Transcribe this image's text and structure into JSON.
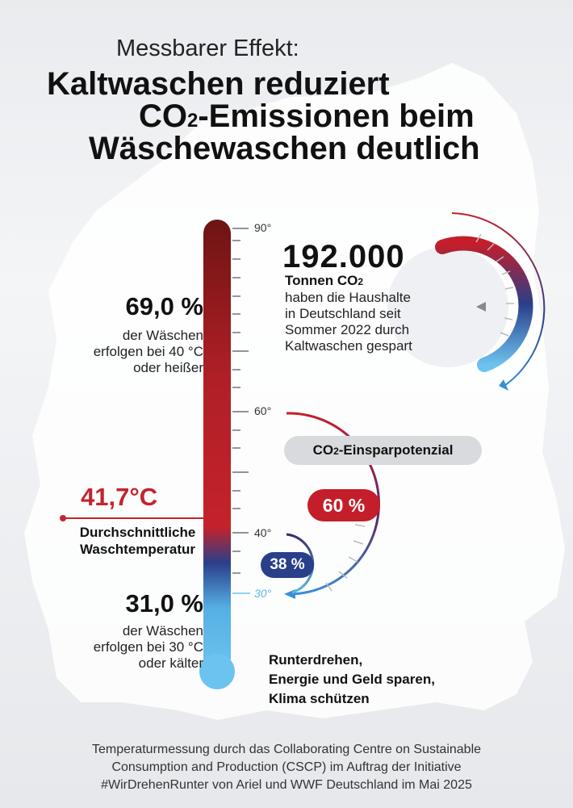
{
  "header": {
    "subtitle": "Messbarer Effekt:",
    "title_line1": "Kaltwaschen reduziert",
    "title_line2_pre": "CO",
    "title_line2_sub": "2",
    "title_line2_post": "-Emissionen beim",
    "title_line3": "Wäschewaschen deutlich"
  },
  "thermometer": {
    "ticks": [
      "90°",
      "60°",
      "40°",
      "30°"
    ],
    "average_temp": "41,7°C",
    "average_label_line1": "Durchschnittliche",
    "average_label_line2": "Waschtemperatur"
  },
  "stats": {
    "hot": {
      "percent": "69,0 %",
      "line1": "der Wäschen",
      "line2": "erfolgen bei 40 °C",
      "line3": "oder heißer"
    },
    "cold": {
      "percent": "31,0 %",
      "line1": "der Wäschen",
      "line2": "erfolgen bei 30 °C",
      "line3": "oder kälter"
    }
  },
  "savings": {
    "amount": "192.000",
    "unit_pre": "Tonnen CO",
    "unit_sub": "2",
    "line1": "haben die Haushalte",
    "line2": "in Deutschland seit",
    "line3": "Sommer 2022 durch",
    "line4": "Kaltwaschen gespart"
  },
  "potential": {
    "label_pre": "CO",
    "label_sub": "2",
    "label_post": "-Einsparpotenzial",
    "badge_60": "60 %",
    "badge_38": "38 %"
  },
  "slogan": {
    "line1": "Runterdrehen,",
    "line2": "Energie und Geld sparen,",
    "line3": "Klima schützen"
  },
  "footer": {
    "line1": "Temperaturmessung durch das Collaborating Centre on Sustainable",
    "line2": "Consumption and Production (CSCP) im Auftrag der Initiative",
    "line3": "#WirDrehenRunter von Ariel und WWF Deutschland im Mai 2025"
  },
  "colors": {
    "red": "#c41e2a",
    "dark_red": "#7a1515",
    "blue": "#2a3f8a",
    "light_blue": "#5ab6e6"
  }
}
